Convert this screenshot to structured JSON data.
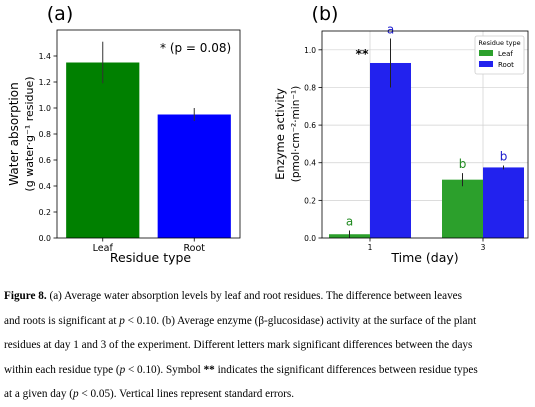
{
  "chart_data": [
    {
      "type": "bar",
      "panel_label": "(a)",
      "categories": [
        "Leaf",
        "Root"
      ],
      "values": [
        1.35,
        0.95
      ],
      "errors": [
        0.16,
        0.05
      ],
      "colors": [
        "#008000",
        "#0000ff"
      ],
      "xlabel": "Residue type",
      "ylabel_line1": "Water absorption",
      "ylabel_line2": "(g water·g⁻¹ residue)",
      "ylim": [
        0,
        1.6
      ],
      "yticks": [
        "0.0",
        "0.2",
        "0.4",
        "0.6",
        "0.8",
        "1.0",
        "1.2",
        "1.4"
      ],
      "annotation": "* (p = 0.08)"
    },
    {
      "type": "bar",
      "panel_label": "(b)",
      "categories": [
        "1",
        "3"
      ],
      "series": [
        {
          "name": "Leaf",
          "color": "#2ca02c",
          "values": [
            0.02,
            0.31
          ],
          "errors": [
            0.02,
            0.035
          ],
          "letters": [
            "a",
            "b"
          ]
        },
        {
          "name": "Root",
          "color": "#2222ee",
          "values": [
            0.93,
            0.375
          ],
          "errors": [
            0.13,
            0.01
          ],
          "letters": [
            "a",
            "b"
          ]
        }
      ],
      "xlabel": "Time (day)",
      "ylabel_line1": "Enzyme activity",
      "ylabel_line2": "(pmol·cm⁻²·min⁻¹)",
      "ylim": [
        0,
        1.1
      ],
      "yticks": [
        "0.0",
        "0.2",
        "0.4",
        "0.6",
        "0.8",
        "1.0"
      ],
      "grid": true,
      "legend_title": "Residue type",
      "legend_position": "top-right",
      "annotation": "**",
      "letter_color": "#228B22",
      "letter_color_root": "#1a1acc"
    }
  ],
  "caption": {
    "lines": [
      [
        {
          "t": "Figure 8.",
          "s": "b"
        },
        {
          "t": " (a) Average water absorption levels by leaf and root residues. The difference between leaves"
        }
      ],
      [
        {
          "t": "and roots is significant at "
        },
        {
          "t": "p",
          "s": "i"
        },
        {
          "t": " < 0.10. (b) Average enzyme (β-glucosidase) activity at the surface of the plant"
        }
      ],
      [
        {
          "t": "residues at day 1 and 3 of the experiment. Different letters mark significant differences between the days"
        }
      ],
      [
        {
          "t": "within each residue type ("
        },
        {
          "t": "p",
          "s": "i"
        },
        {
          "t": " < 0.10). Symbol "
        },
        {
          "t": "**",
          "s": "b"
        },
        {
          "t": " indicates the significant differences between residue types"
        }
      ],
      [
        {
          "t": "at a given day ("
        },
        {
          "t": "p",
          "s": "i"
        },
        {
          "t": " < 0.05). Vertical lines represent standard errors."
        }
      ]
    ]
  }
}
